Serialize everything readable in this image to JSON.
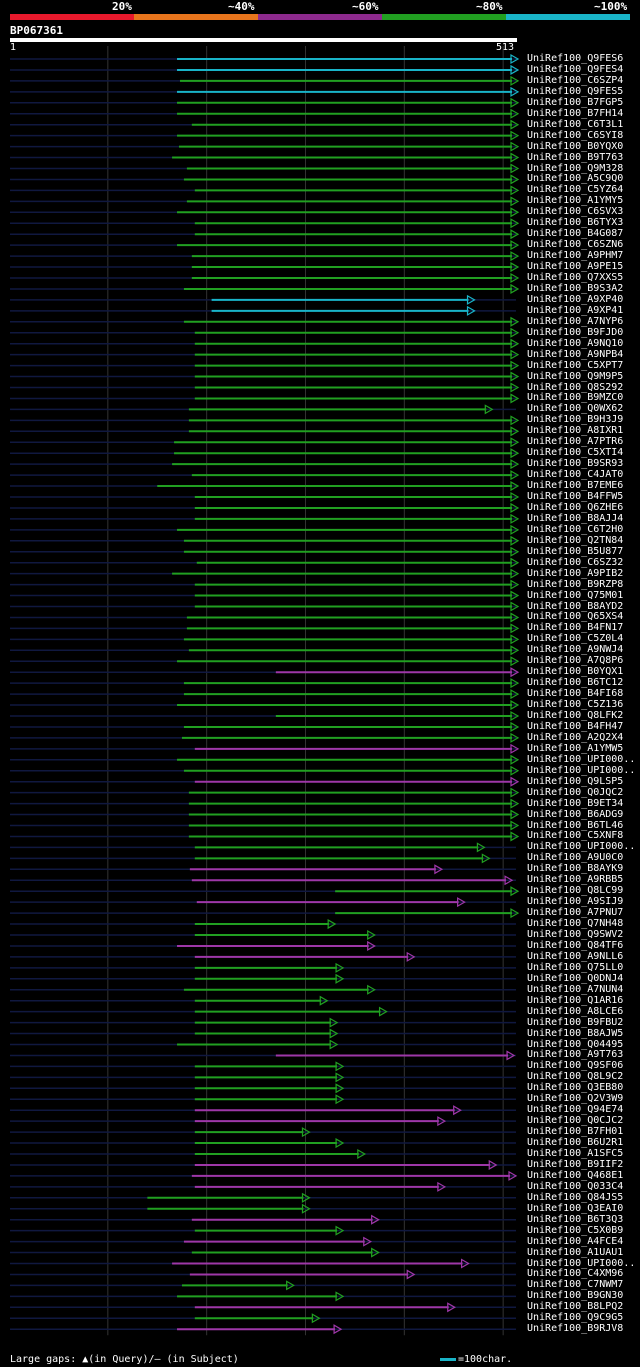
{
  "legend": {
    "labels": [
      "20%",
      "~40%",
      "~60%",
      "~80%",
      "~100%"
    ],
    "colors": [
      "#e8192c",
      "#e8751c",
      "#8e2a8e",
      "#21a021",
      "#19b4c8"
    ]
  },
  "query": {
    "id": "BP067361",
    "start": "1",
    "end": "513",
    "length": 513
  },
  "palette": {
    "cyan": "#19b4c8",
    "green": "#21a021",
    "purple": "#9e37a8",
    "baseline": "#101840"
  },
  "footer": {
    "gaps_text": "Large gaps: ▲(in Query)/– (in Subject)",
    "scale_text": "=100char."
  },
  "hits": [
    {
      "label": "UniRef100_Q9FES6",
      "c": "cyan",
      "s": 170,
      "e": 513
    },
    {
      "label": "UniRef100_Q9FES4",
      "c": "cyan",
      "s": 170,
      "e": 513
    },
    {
      "label": "UniRef100_C6SZP4",
      "c": "green",
      "s": 173,
      "e": 513
    },
    {
      "label": "UniRef100_Q9FES5",
      "c": "cyan",
      "s": 170,
      "e": 513
    },
    {
      "label": "UniRef100_B7FGP5",
      "c": "green",
      "s": 170,
      "e": 513
    },
    {
      "label": "UniRef100_B7FH14",
      "c": "green",
      "s": 170,
      "e": 513
    },
    {
      "label": "UniRef100_C6T3L1",
      "c": "green",
      "s": 185,
      "e": 513
    },
    {
      "label": "UniRef100_C6SYI8",
      "c": "green",
      "s": 170,
      "e": 513
    },
    {
      "label": "UniRef100_B0YQX0",
      "c": "green",
      "s": 172,
      "e": 513
    },
    {
      "label": "UniRef100_B9T763",
      "c": "green",
      "s": 165,
      "e": 513
    },
    {
      "label": "UniRef100_Q9M328",
      "c": "green",
      "s": 180,
      "e": 513
    },
    {
      "label": "UniRef100_A5C9Q0",
      "c": "green",
      "s": 177,
      "e": 513
    },
    {
      "label": "UniRef100_C5YZ64",
      "c": "green",
      "s": 188,
      "e": 513
    },
    {
      "label": "UniRef100_A1YMY5",
      "c": "green",
      "s": 180,
      "e": 513
    },
    {
      "label": "UniRef100_C6SVX3",
      "c": "green",
      "s": 170,
      "e": 513
    },
    {
      "label": "UniRef100_B6TYX3",
      "c": "green",
      "s": 188,
      "e": 513
    },
    {
      "label": "UniRef100_B4G087",
      "c": "green",
      "s": 188,
      "e": 513
    },
    {
      "label": "UniRef100_C6SZN6",
      "c": "green",
      "s": 170,
      "e": 513
    },
    {
      "label": "UniRef100_A9PHM7",
      "c": "green",
      "s": 185,
      "e": 513
    },
    {
      "label": "UniRef100_A9PE15",
      "c": "green",
      "s": 185,
      "e": 513
    },
    {
      "label": "UniRef100_Q7XXS5",
      "c": "green",
      "s": 185,
      "e": 513
    },
    {
      "label": "UniRef100_B9S3A2",
      "c": "green",
      "s": 177,
      "e": 513
    },
    {
      "label": "UniRef100_A9XP40",
      "c": "cyan",
      "s": 205,
      "e": 469
    },
    {
      "label": "UniRef100_A9XP41",
      "c": "cyan",
      "s": 205,
      "e": 469
    },
    {
      "label": "UniRef100_A7NYP6",
      "c": "green",
      "s": 177,
      "e": 513
    },
    {
      "label": "UniRef100_B9FJD0",
      "c": "green",
      "s": 188,
      "e": 513
    },
    {
      "label": "UniRef100_A9NQ10",
      "c": "green",
      "s": 188,
      "e": 513
    },
    {
      "label": "UniRef100_A9NPB4",
      "c": "green",
      "s": 188,
      "e": 513
    },
    {
      "label": "UniRef100_C5XPT7",
      "c": "green",
      "s": 188,
      "e": 513
    },
    {
      "label": "UniRef100_Q9M9P5",
      "c": "green",
      "s": 188,
      "e": 513
    },
    {
      "label": "UniRef100_Q8S292",
      "c": "green",
      "s": 188,
      "e": 513
    },
    {
      "label": "UniRef100_B9MZC0",
      "c": "green",
      "s": 188,
      "e": 513
    },
    {
      "label": "UniRef100_Q0WX62",
      "c": "green",
      "s": 182,
      "e": 487
    },
    {
      "label": "UniRef100_B9H3J9",
      "c": "green",
      "s": 182,
      "e": 513
    },
    {
      "label": "UniRef100_A8IXR1",
      "c": "green",
      "s": 182,
      "e": 513
    },
    {
      "label": "UniRef100_A7PTR6",
      "c": "green",
      "s": 167,
      "e": 513
    },
    {
      "label": "UniRef100_C5XTI4",
      "c": "green",
      "s": 167,
      "e": 513
    },
    {
      "label": "UniRef100_B9SR93",
      "c": "green",
      "s": 165,
      "e": 513
    },
    {
      "label": "UniRef100_C4JAT0",
      "c": "green",
      "s": 185,
      "e": 513
    },
    {
      "label": "UniRef100_B7EME6",
      "c": "green",
      "s": 150,
      "e": 513
    },
    {
      "label": "UniRef100_B4FFW5",
      "c": "green",
      "s": 188,
      "e": 513
    },
    {
      "label": "UniRef100_Q6ZHE6",
      "c": "green",
      "s": 188,
      "e": 513
    },
    {
      "label": "UniRef100_B8AJJ4",
      "c": "green",
      "s": 188,
      "e": 513
    },
    {
      "label": "UniRef100_C6T2H0",
      "c": "green",
      "s": 170,
      "e": 513
    },
    {
      "label": "UniRef100_Q2TN84",
      "c": "green",
      "s": 177,
      "e": 513
    },
    {
      "label": "UniRef100_B5U877",
      "c": "green",
      "s": 177,
      "e": 513
    },
    {
      "label": "UniRef100_C6SZ32",
      "c": "green",
      "s": 190,
      "e": 513
    },
    {
      "label": "UniRef100_A9PIB2",
      "c": "green",
      "s": 165,
      "e": 513
    },
    {
      "label": "UniRef100_B9RZP8",
      "c": "green",
      "s": 188,
      "e": 513
    },
    {
      "label": "UniRef100_Q75M01",
      "c": "green",
      "s": 188,
      "e": 513
    },
    {
      "label": "UniRef100_B8AYD2",
      "c": "green",
      "s": 188,
      "e": 513
    },
    {
      "label": "UniRef100_Q65XS4",
      "c": "green",
      "s": 180,
      "e": 513
    },
    {
      "label": "UniRef100_B4FN17",
      "c": "green",
      "s": 180,
      "e": 513
    },
    {
      "label": "UniRef100_C5Z0L4",
      "c": "green",
      "s": 177,
      "e": 513
    },
    {
      "label": "UniRef100_A9NWJ4",
      "c": "green",
      "s": 182,
      "e": 513
    },
    {
      "label": "UniRef100_A7Q8P6",
      "c": "green",
      "s": 170,
      "e": 513
    },
    {
      "label": "UniRef100_B0YQX1",
      "c": "purple",
      "s": 270,
      "e": 513
    },
    {
      "label": "UniRef100_B6TC12",
      "c": "green",
      "s": 177,
      "e": 513
    },
    {
      "label": "UniRef100_B4FI68",
      "c": "green",
      "s": 177,
      "e": 513
    },
    {
      "label": "UniRef100_C5Z136",
      "c": "green",
      "s": 170,
      "e": 513
    },
    {
      "label": "UniRef100_Q8LFK2",
      "c": "green",
      "s": 270,
      "e": 513
    },
    {
      "label": "UniRef100_B4FH47",
      "c": "green",
      "s": 177,
      "e": 513
    },
    {
      "label": "UniRef100_A2Q2X4",
      "c": "green",
      "s": 175,
      "e": 513
    },
    {
      "label": "UniRef100_A1YMW5",
      "c": "purple",
      "s": 188,
      "e": 513
    },
    {
      "label": "UniRef100_UPI000..",
      "c": "green",
      "s": 170,
      "e": 513
    },
    {
      "label": "UniRef100_UPI000..",
      "c": "green",
      "s": 177,
      "e": 513
    },
    {
      "label": "UniRef100_Q9LSP5",
      "c": "purple",
      "s": 188,
      "e": 513
    },
    {
      "label": "UniRef100_Q0JQC2",
      "c": "green",
      "s": 182,
      "e": 513
    },
    {
      "label": "UniRef100_B9ET34",
      "c": "green",
      "s": 182,
      "e": 513
    },
    {
      "label": "UniRef100_B6ADG9",
      "c": "green",
      "s": 182,
      "e": 513
    },
    {
      "label": "UniRef100_B6TL46",
      "c": "green",
      "s": 182,
      "e": 513
    },
    {
      "label": "UniRef100_C5XNF8",
      "c": "green",
      "s": 182,
      "e": 513
    },
    {
      "label": "UniRef100_UPI000..",
      "c": "green",
      "s": 188,
      "e": 479
    },
    {
      "label": "UniRef100_A9U0C0",
      "c": "green",
      "s": 188,
      "e": 484
    },
    {
      "label": "UniRef100_B8AYK9",
      "c": "purple",
      "s": 183,
      "e": 436
    },
    {
      "label": "UniRef100_A9RBB5",
      "c": "purple",
      "s": 185,
      "e": 507
    },
    {
      "label": "UniRef100_Q8LC99",
      "c": "green",
      "s": 330,
      "e": 513
    },
    {
      "label": "UniRef100_A9SIJ9",
      "c": "purple",
      "s": 190,
      "e": 459
    },
    {
      "label": "UniRef100_A7PNU7",
      "c": "green",
      "s": 330,
      "e": 513
    },
    {
      "label": "UniRef100_Q7NH48",
      "c": "green",
      "s": 188,
      "e": 328
    },
    {
      "label": "UniRef100_Q9SWV2",
      "c": "green",
      "s": 188,
      "e": 368
    },
    {
      "label": "UniRef100_Q84TF6",
      "c": "purple",
      "s": 170,
      "e": 368
    },
    {
      "label": "UniRef100_A9NLL6",
      "c": "purple",
      "s": 188,
      "e": 408
    },
    {
      "label": "UniRef100_Q75LL0",
      "c": "green",
      "s": 188,
      "e": 336
    },
    {
      "label": "UniRef100_Q0DNJ4",
      "c": "green",
      "s": 188,
      "e": 336
    },
    {
      "label": "UniRef100_A7NUN4",
      "c": "green",
      "s": 177,
      "e": 368
    },
    {
      "label": "UniRef100_Q1AR16",
      "c": "green",
      "s": 188,
      "e": 320
    },
    {
      "label": "UniRef100_A8LCE6",
      "c": "green",
      "s": 188,
      "e": 380
    },
    {
      "label": "UniRef100_B9FBU2",
      "c": "green",
      "s": 188,
      "e": 330
    },
    {
      "label": "UniRef100_B8AJW5",
      "c": "green",
      "s": 188,
      "e": 330
    },
    {
      "label": "UniRef100_Q04495",
      "c": "green",
      "s": 170,
      "e": 330
    },
    {
      "label": "UniRef100_A9T763",
      "c": "purple",
      "s": 270,
      "e": 509
    },
    {
      "label": "UniRef100_Q9SF06",
      "c": "green",
      "s": 188,
      "e": 336
    },
    {
      "label": "UniRef100_Q8L9C2",
      "c": "green",
      "s": 188,
      "e": 336
    },
    {
      "label": "UniRef100_Q3EB80",
      "c": "green",
      "s": 188,
      "e": 336
    },
    {
      "label": "UniRef100_Q2V3W9",
      "c": "green",
      "s": 188,
      "e": 336
    },
    {
      "label": "UniRef100_Q94E74",
      "c": "purple",
      "s": 188,
      "e": 455
    },
    {
      "label": "UniRef100_Q0CJC2",
      "c": "purple",
      "s": 188,
      "e": 439
    },
    {
      "label": "UniRef100_B7FH01",
      "c": "green",
      "s": 188,
      "e": 302
    },
    {
      "label": "UniRef100_B6U2R1",
      "c": "green",
      "s": 188,
      "e": 336
    },
    {
      "label": "UniRef100_A1SFC5",
      "c": "green",
      "s": 188,
      "e": 358
    },
    {
      "label": "UniRef100_B9IIF2",
      "c": "purple",
      "s": 188,
      "e": 491
    },
    {
      "label": "UniRef100_Q468E1",
      "c": "purple",
      "s": 185,
      "e": 511
    },
    {
      "label": "UniRef100_Q033C4",
      "c": "purple",
      "s": 188,
      "e": 439
    },
    {
      "label": "UniRef100_Q84JS5",
      "c": "green",
      "s": 140,
      "e": 302
    },
    {
      "label": "UniRef100_Q3EAI0",
      "c": "green",
      "s": 140,
      "e": 302
    },
    {
      "label": "UniRef100_B6T3Q3",
      "c": "purple",
      "s": 185,
      "e": 372
    },
    {
      "label": "UniRef100_C5X0B9",
      "c": "green",
      "s": 188,
      "e": 336
    },
    {
      "label": "UniRef100_A4FCE4",
      "c": "purple",
      "s": 177,
      "e": 364
    },
    {
      "label": "UniRef100_A1UAU1",
      "c": "green",
      "s": 185,
      "e": 372
    },
    {
      "label": "UniRef100_UPI000..",
      "c": "purple",
      "s": 165,
      "e": 463
    },
    {
      "label": "UniRef100_C4XM96",
      "c": "purple",
      "s": 183,
      "e": 408
    },
    {
      "label": "UniRef100_C7NWM7",
      "c": "green",
      "s": 175,
      "e": 286
    },
    {
      "label": "UniRef100_B9GN30",
      "c": "green",
      "s": 170,
      "e": 336
    },
    {
      "label": "UniRef100_B8LPQ2",
      "c": "purple",
      "s": 188,
      "e": 449
    },
    {
      "label": "UniRef100_Q9C9G5",
      "c": "green",
      "s": 188,
      "e": 312
    },
    {
      "label": "UniRef100_B9RJV8",
      "c": "purple",
      "s": 170,
      "e": 334
    }
  ]
}
